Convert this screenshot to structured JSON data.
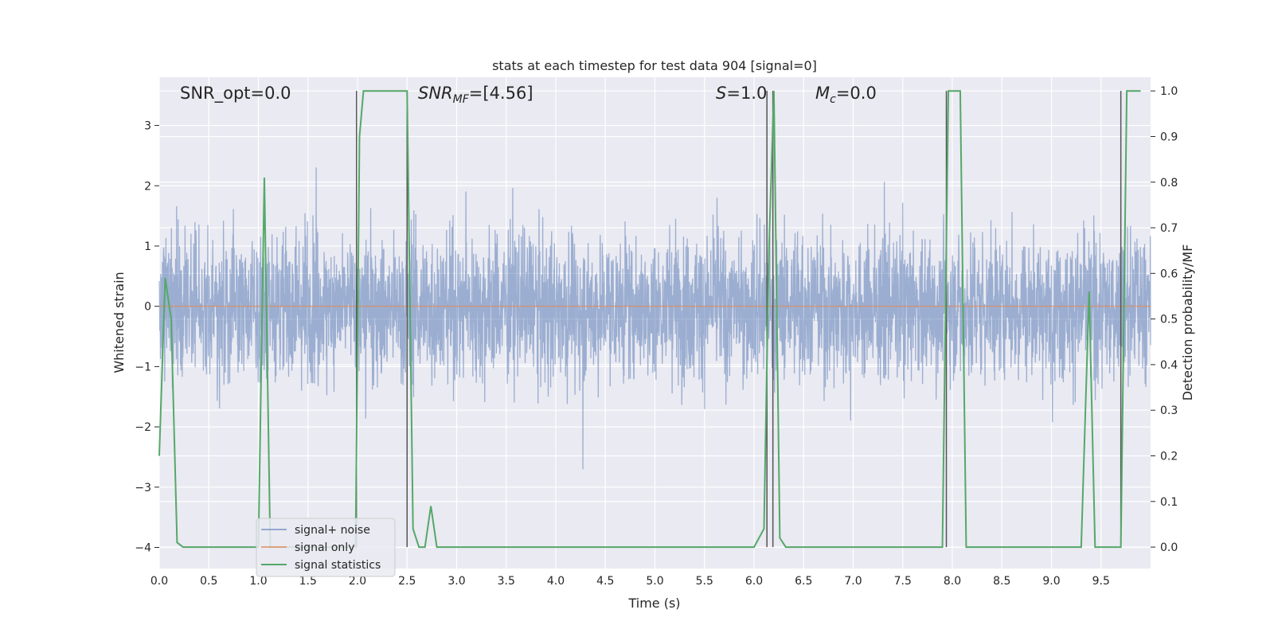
{
  "chart_data": {
    "type": "line",
    "title": "stats at each timestep for test data 904 [signal=0]",
    "xlabel": "Time (s)",
    "ylabel": "Whitened strain",
    "ylabel_right": "Detection probability/MF",
    "xlim": [
      0,
      10
    ],
    "ylim": [
      -4.35,
      3.8
    ],
    "ylim_right": [
      -0.047,
      1.03
    ],
    "xticks": [
      "0.0",
      "0.5",
      "1.0",
      "1.5",
      "2.0",
      "2.5",
      "3.0",
      "3.5",
      "4.0",
      "4.5",
      "5.0",
      "5.5",
      "6.0",
      "6.5",
      "7.0",
      "7.5",
      "8.0",
      "8.5",
      "9.0",
      "9.5"
    ],
    "yticks_left": [
      "3",
      "2",
      "1",
      "0",
      "−1",
      "−2",
      "−3",
      "−4"
    ],
    "yticks_right": [
      "1.0",
      "0.9",
      "0.8",
      "0.7",
      "0.6",
      "0.5",
      "0.4",
      "0.3",
      "0.2",
      "0.1",
      "0.0"
    ],
    "grid": true,
    "legend_position": "lower-left",
    "annotations": {
      "snr_opt": "SNR_opt=0.0",
      "snr_mf_var": "SNR",
      "snr_mf_sub": "MF",
      "snr_mf_val": "=[4.56]",
      "s_var": "S",
      "s_val": "=1.0",
      "mc_var": "M",
      "mc_sub": "c",
      "mc_val": "=0.0"
    },
    "series": [
      {
        "name": "signal+ noise",
        "color": "#4c72b0",
        "description_values": "noise envelope approx ±2.5"
      },
      {
        "name": "signal only",
        "color": "#dd8452",
        "y": 0.0
      },
      {
        "name": "signal statistics",
        "color": "#55a868",
        "x": [
          0.0,
          0.06,
          0.12,
          0.18,
          0.24,
          0.3,
          0.9,
          1.0,
          1.06,
          1.12,
          1.18,
          1.9,
          1.98,
          2.02,
          2.06,
          2.1,
          2.5,
          2.56,
          2.62,
          2.68,
          2.74,
          2.8,
          2.86,
          6.0,
          6.1,
          6.15,
          6.2,
          6.26,
          6.32,
          7.9,
          7.96,
          8.02,
          8.08,
          8.14,
          8.2,
          9.3,
          9.38,
          9.44,
          9.5,
          9.7,
          9.76,
          9.82,
          9.9
        ],
        "values": [
          0.2,
          0.59,
          0.5,
          0.01,
          0.0,
          0.0,
          0.0,
          0.0,
          0.81,
          0.0,
          0.0,
          0.0,
          0.0,
          0.9,
          1.0,
          1.0,
          1.0,
          0.04,
          0.0,
          0.0,
          0.09,
          0.0,
          0.0,
          0.0,
          0.04,
          0.65,
          1.0,
          0.02,
          0.0,
          0.0,
          1.0,
          1.0,
          1.0,
          0.0,
          0.0,
          0.0,
          0.56,
          0.0,
          0.0,
          0.0,
          1.0,
          1.0,
          1.0
        ]
      }
    ],
    "vertical_lines_x": [
      1.99,
      2.5,
      6.13,
      6.19,
      7.94,
      9.7
    ],
    "vertical_line_color": "#555555"
  }
}
